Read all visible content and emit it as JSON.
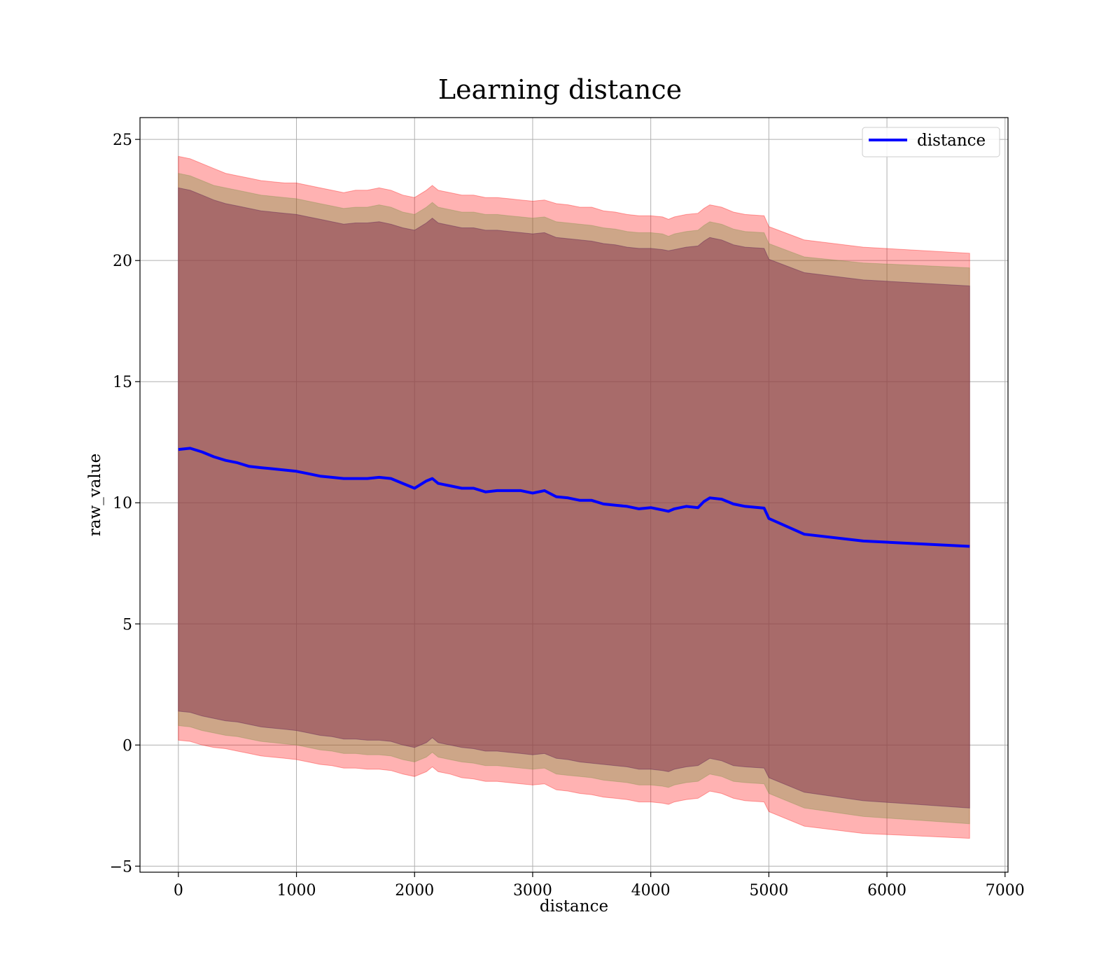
{
  "chart_data": {
    "type": "line",
    "title": "Learning distance",
    "xlabel": "distance",
    "ylabel": "raw_value",
    "xlim": [
      -325,
      7025
    ],
    "ylim": [
      -5.25,
      25.9
    ],
    "xticks": [
      0,
      1000,
      2000,
      3000,
      4000,
      5000,
      6000,
      7000
    ],
    "yticks": [
      -5,
      0,
      5,
      10,
      15,
      20,
      25
    ],
    "xtick_labels": [
      "0",
      "1000",
      "2000",
      "3000",
      "4000",
      "5000",
      "6000",
      "7000"
    ],
    "ytick_labels": [
      "−5",
      "0",
      "5",
      "10",
      "15",
      "20",
      "25"
    ],
    "grid": true,
    "legend": {
      "position": "top-right",
      "entries": [
        "distance"
      ]
    },
    "colors": {
      "line": "#0000ff",
      "band": "#ff0000",
      "inner_band": "#8b3a52"
    },
    "series": [
      {
        "name": "distance",
        "x": [
          0,
          100,
          200,
          300,
          400,
          500,
          600,
          700,
          800,
          900,
          1000,
          1100,
          1200,
          1300,
          1400,
          1500,
          1600,
          1700,
          1800,
          1900,
          2000,
          2100,
          2150,
          2200,
          2300,
          2400,
          2500,
          2600,
          2700,
          2800,
          2900,
          3000,
          3100,
          3200,
          3300,
          3400,
          3500,
          3600,
          3700,
          3800,
          3900,
          4000,
          4100,
          4150,
          4200,
          4300,
          4400,
          4450,
          4500,
          4600,
          4700,
          4800,
          4960,
          5000,
          5300,
          5800,
          6700
        ],
        "y": [
          12.2,
          12.25,
          12.1,
          11.9,
          11.75,
          11.65,
          11.5,
          11.45,
          11.4,
          11.35,
          11.3,
          11.2,
          11.1,
          11.05,
          11.0,
          11.0,
          11.0,
          11.05,
          11.0,
          10.8,
          10.6,
          10.9,
          11.0,
          10.8,
          10.7,
          10.6,
          10.6,
          10.45,
          10.5,
          10.5,
          10.5,
          10.4,
          10.5,
          10.25,
          10.2,
          10.1,
          10.1,
          9.95,
          9.9,
          9.85,
          9.75,
          9.8,
          9.7,
          9.65,
          9.75,
          9.85,
          9.8,
          10.05,
          10.2,
          10.15,
          9.95,
          9.85,
          9.78,
          9.35,
          8.7,
          8.42,
          8.2
        ],
        "band_outer_upper": [
          24.3,
          24.2,
          24.0,
          23.8,
          23.6,
          23.5,
          23.4,
          23.3,
          23.25,
          23.2,
          23.2,
          23.1,
          23.0,
          22.9,
          22.8,
          22.9,
          22.9,
          23.0,
          22.9,
          22.7,
          22.6,
          22.9,
          23.1,
          22.9,
          22.8,
          22.7,
          22.7,
          22.6,
          22.6,
          22.55,
          22.5,
          22.45,
          22.5,
          22.35,
          22.3,
          22.2,
          22.2,
          22.05,
          22.0,
          21.9,
          21.85,
          21.85,
          21.8,
          21.7,
          21.8,
          21.9,
          21.95,
          22.15,
          22.3,
          22.2,
          22.0,
          21.9,
          21.85,
          21.4,
          20.85,
          20.55,
          20.3
        ],
        "band_outer_lower": [
          0.2,
          0.15,
          0.0,
          -0.1,
          -0.15,
          -0.25,
          -0.35,
          -0.45,
          -0.5,
          -0.55,
          -0.6,
          -0.7,
          -0.8,
          -0.85,
          -0.95,
          -0.95,
          -1.0,
          -1.0,
          -1.05,
          -1.2,
          -1.3,
          -1.1,
          -0.9,
          -1.1,
          -1.2,
          -1.35,
          -1.4,
          -1.5,
          -1.5,
          -1.55,
          -1.6,
          -1.65,
          -1.6,
          -1.85,
          -1.9,
          -2.0,
          -2.05,
          -2.15,
          -2.2,
          -2.25,
          -2.35,
          -2.35,
          -2.4,
          -2.45,
          -2.35,
          -2.25,
          -2.2,
          -2.05,
          -1.9,
          -2.0,
          -2.2,
          -2.3,
          -2.35,
          -2.75,
          -3.35,
          -3.65,
          -3.85
        ],
        "band_mid_upper": [
          23.6,
          23.5,
          23.3,
          23.1,
          23.0,
          22.9,
          22.8,
          22.7,
          22.65,
          22.6,
          22.55,
          22.45,
          22.35,
          22.25,
          22.15,
          22.2,
          22.2,
          22.3,
          22.2,
          22.0,
          21.9,
          22.2,
          22.4,
          22.2,
          22.1,
          22.0,
          22.0,
          21.9,
          21.9,
          21.85,
          21.8,
          21.75,
          21.8,
          21.6,
          21.55,
          21.5,
          21.45,
          21.35,
          21.3,
          21.2,
          21.15,
          21.15,
          21.1,
          21.0,
          21.1,
          21.2,
          21.25,
          21.45,
          21.6,
          21.5,
          21.3,
          21.2,
          21.15,
          20.7,
          20.15,
          19.9,
          19.7
        ],
        "band_mid_lower": [
          0.8,
          0.75,
          0.6,
          0.5,
          0.4,
          0.35,
          0.25,
          0.15,
          0.1,
          0.05,
          0.0,
          -0.1,
          -0.2,
          -0.25,
          -0.35,
          -0.35,
          -0.4,
          -0.4,
          -0.45,
          -0.6,
          -0.7,
          -0.5,
          -0.3,
          -0.5,
          -0.6,
          -0.7,
          -0.75,
          -0.85,
          -0.85,
          -0.9,
          -0.95,
          -1.0,
          -0.95,
          -1.2,
          -1.25,
          -1.3,
          -1.35,
          -1.45,
          -1.5,
          -1.55,
          -1.65,
          -1.65,
          -1.7,
          -1.75,
          -1.65,
          -1.55,
          -1.5,
          -1.35,
          -1.2,
          -1.3,
          -1.5,
          -1.55,
          -1.6,
          -2.0,
          -2.6,
          -2.95,
          -3.25
        ],
        "band_inner_upper": [
          23.0,
          22.9,
          22.7,
          22.5,
          22.35,
          22.25,
          22.15,
          22.05,
          22.0,
          21.95,
          21.9,
          21.8,
          21.7,
          21.6,
          21.5,
          21.55,
          21.55,
          21.6,
          21.5,
          21.35,
          21.25,
          21.55,
          21.75,
          21.55,
          21.45,
          21.35,
          21.35,
          21.25,
          21.25,
          21.2,
          21.15,
          21.1,
          21.15,
          20.95,
          20.9,
          20.85,
          20.8,
          20.7,
          20.65,
          20.55,
          20.5,
          20.5,
          20.45,
          20.4,
          20.45,
          20.55,
          20.6,
          20.8,
          20.95,
          20.85,
          20.65,
          20.55,
          20.5,
          20.05,
          19.5,
          19.2,
          18.95
        ],
        "band_inner_lower": [
          1.4,
          1.35,
          1.2,
          1.1,
          1.0,
          0.95,
          0.85,
          0.75,
          0.7,
          0.65,
          0.6,
          0.5,
          0.4,
          0.35,
          0.25,
          0.25,
          0.2,
          0.2,
          0.15,
          0.0,
          -0.1,
          0.1,
          0.3,
          0.1,
          0.0,
          -0.1,
          -0.15,
          -0.25,
          -0.25,
          -0.3,
          -0.35,
          -0.4,
          -0.35,
          -0.55,
          -0.6,
          -0.7,
          -0.75,
          -0.8,
          -0.85,
          -0.9,
          -1.0,
          -1.0,
          -1.05,
          -1.1,
          -1.0,
          -0.9,
          -0.85,
          -0.7,
          -0.55,
          -0.65,
          -0.85,
          -0.9,
          -0.95,
          -1.35,
          -1.95,
          -2.3,
          -2.6
        ]
      }
    ]
  }
}
